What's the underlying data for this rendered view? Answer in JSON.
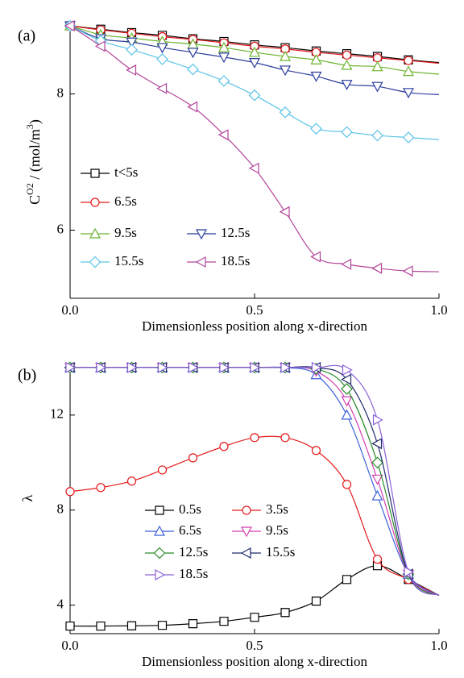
{
  "chart_data": [
    {
      "type": "line",
      "panel_label": "(a)",
      "xlabel": "Dimensionless position along x-direction",
      "ylabel": [
        "C",
        "O2",
        " / (mol/m",
        "3",
        ")"
      ],
      "x": [
        0,
        0.083,
        0.167,
        0.25,
        0.333,
        0.417,
        0.5,
        0.583,
        0.667,
        0.75,
        0.833,
        0.917,
        1.0
      ],
      "xlim": [
        0,
        1
      ],
      "xticks": [
        {
          "value": 0,
          "label": "0.0"
        },
        0.5,
        {
          "value": 1,
          "label": "1.0"
        }
      ],
      "ylim": [
        5,
        9
      ],
      "yticks": [
        6,
        8
      ],
      "series": [
        {
          "name": "t<5s",
          "color": "#000000",
          "marker": "square",
          "values": [
            9.0,
            8.95,
            8.9,
            8.86,
            8.81,
            8.77,
            8.72,
            8.68,
            8.63,
            8.59,
            8.55,
            8.5,
            8.46
          ]
        },
        {
          "name": "6.5s",
          "color": "#e31a1c",
          "marker": "circle",
          "values": [
            9.0,
            8.94,
            8.89,
            8.84,
            8.8,
            8.75,
            8.7,
            8.66,
            8.61,
            8.57,
            8.53,
            8.49,
            8.45
          ]
        },
        {
          "name": "9.5s",
          "color": "#6ab42d",
          "marker": "triangle-up",
          "values": [
            9.0,
            8.87,
            8.82,
            8.77,
            8.73,
            8.68,
            8.61,
            8.55,
            8.5,
            8.42,
            8.4,
            8.33,
            8.29
          ]
        },
        {
          "name": "12.5s",
          "color": "#2b3d9c",
          "marker": "triangle-down",
          "values": [
            9.0,
            8.81,
            8.76,
            8.68,
            8.61,
            8.54,
            8.46,
            8.35,
            8.26,
            8.14,
            8.11,
            8.02,
            7.99
          ]
        },
        {
          "name": "15.5s",
          "color": "#5bc3e6",
          "marker": "diamond",
          "values": [
            9.0,
            8.78,
            8.65,
            8.51,
            8.36,
            8.19,
            7.98,
            7.73,
            7.49,
            7.44,
            7.39,
            7.36,
            7.33
          ]
        },
        {
          "name": "18.5s",
          "color": "#b3449a",
          "marker": "triangle-left",
          "values": [
            9.0,
            8.7,
            8.35,
            8.08,
            7.81,
            7.4,
            6.91,
            6.27,
            5.61,
            5.5,
            5.44,
            5.4,
            5.39
          ]
        }
      ]
    },
    {
      "type": "line",
      "panel_label": "(b)",
      "xlabel": "Dimensionless position along x-direction",
      "ylabel": [
        "λ"
      ],
      "x": [
        0,
        0.083,
        0.167,
        0.25,
        0.333,
        0.417,
        0.5,
        0.583,
        0.667,
        0.75,
        0.833,
        0.917,
        1.0
      ],
      "xlim": [
        0,
        1
      ],
      "xticks": [
        {
          "value": 0,
          "label": "0.0"
        },
        0.5,
        {
          "value": 1,
          "label": "1.0"
        }
      ],
      "ylim": [
        2.8,
        14.2
      ],
      "yticks": [
        4,
        8,
        12
      ],
      "series": [
        {
          "name": "0.5s",
          "color": "#000000",
          "marker": "square",
          "values": [
            3.12,
            3.12,
            3.13,
            3.15,
            3.22,
            3.32,
            3.49,
            3.69,
            4.17,
            5.08,
            5.66,
            5.08,
            4.41
          ]
        },
        {
          "name": "3.5s",
          "color": "#e31a1c",
          "marker": "circle",
          "values": [
            8.78,
            8.95,
            9.22,
            9.69,
            10.2,
            10.68,
            11.05,
            11.05,
            10.51,
            9.08,
            5.93,
            5.08,
            4.41
          ]
        },
        {
          "name": "6.5s",
          "color": "#3c5fd9",
          "marker": "triangle-up",
          "values": [
            14.0,
            14.0,
            14.0,
            14.0,
            14.0,
            14.0,
            14.0,
            14.0,
            13.7,
            12.0,
            8.6,
            5.3,
            4.41
          ]
        },
        {
          "name": "9.5s",
          "color": "#d23fb0",
          "marker": "triangle-down",
          "values": [
            14.0,
            14.0,
            14.0,
            14.0,
            14.0,
            14.0,
            14.0,
            14.0,
            13.85,
            12.6,
            9.3,
            5.3,
            4.41
          ]
        },
        {
          "name": "12.5s",
          "color": "#2a8a2a",
          "marker": "diamond",
          "values": [
            14.0,
            14.0,
            14.0,
            14.0,
            14.0,
            14.0,
            14.0,
            14.0,
            13.95,
            13.1,
            10.0,
            5.3,
            4.41
          ]
        },
        {
          "name": "15.5s",
          "color": "#1f2a6b",
          "marker": "triangle-left",
          "values": [
            14.0,
            14.0,
            14.0,
            14.0,
            14.0,
            14.0,
            14.0,
            14.0,
            14.0,
            13.5,
            10.8,
            5.3,
            4.41
          ]
        },
        {
          "name": "18.5s",
          "color": "#8a5fd6",
          "marker": "triangle-right",
          "values": [
            14.0,
            14.0,
            14.0,
            14.0,
            14.0,
            14.0,
            14.0,
            14.0,
            14.0,
            13.9,
            11.8,
            5.4,
            4.41
          ]
        }
      ]
    }
  ]
}
